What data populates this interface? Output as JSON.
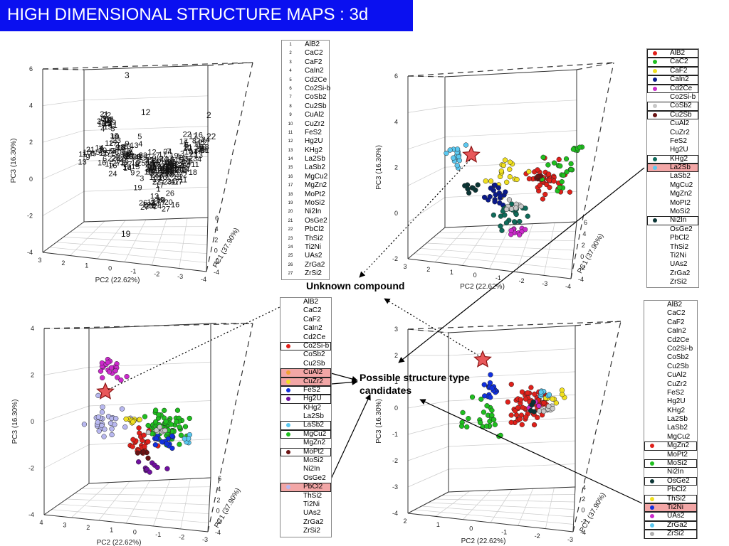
{
  "header": {
    "title": "HIGH DIMENSIONAL STRUCTURE MAPS : 3d"
  },
  "annotations": {
    "unknown_compound": "Unknown compound",
    "candidates": "Possible structure type candidates"
  },
  "colors": {
    "title_bg": "#0a10f0",
    "red": "#e0201a",
    "green": "#1fbf1f",
    "yellow": "#f0e020",
    "navy": "#0a1a8c",
    "magenta": "#cc2acc",
    "lightgray": "#c8c8c8",
    "maroon": "#6b1414",
    "teal": "#0f6b5a",
    "lightblue": "#5bc8f0",
    "darkteal": "#0a3535",
    "lavender": "#b8b8f0",
    "orange": "#f0a030",
    "blue": "#1030e0",
    "purple": "#7010a0",
    "gray": "#b0b0b0",
    "pink_highlight": "#f2a6a6"
  },
  "legend_items": [
    "AlB2",
    "CaC2",
    "CaF2",
    "CaIn2",
    "Cd2Ce",
    "Co2Si-b",
    "CoSb2",
    "Cu2Sb",
    "CuAl2",
    "CuZr2",
    "FeS2",
    "Hg2U",
    "KHg2",
    "La2Sb",
    "LaSb2",
    "MgCu2",
    "MgZn2",
    "MoPt2",
    "MoSi2",
    "Ni2In",
    "OsGe2",
    "PbCl2",
    "ThSi2",
    "Ti2Ni",
    "UAs2",
    "ZrGa2",
    "ZrSi2"
  ],
  "legend_numbers": [
    "1",
    "2",
    "3",
    "4",
    "5",
    "6",
    "7",
    "8",
    "9",
    "10",
    "11",
    "12",
    "13",
    "14",
    "15",
    "16",
    "17",
    "18",
    "19",
    "20",
    "21",
    "22",
    "23",
    "24",
    "25",
    "26",
    "27"
  ],
  "legend_tl": {
    "highlight": {}
  },
  "legend_tr": {
    "highlight": {
      "AlB2": "red",
      "CaC2": "green",
      "CaF2": "yellow",
      "CaIn2": "navy",
      "Cd2Ce": "magenta",
      "CoSb2": "lightgray",
      "Cu2Sb": "maroon",
      "KHg2": "teal",
      "La2Sb": "lightblue",
      "Ni2In": "darkteal"
    },
    "pink": [
      "La2Sb"
    ]
  },
  "legend_bl": {
    "highlight": {
      "Co2Si-b": "red",
      "CuAl2": "orange",
      "CuZr2": "yellow",
      "FeS2": "blue",
      "Hg2U": "purple",
      "LaSb2": "lightblue",
      "MgCu2": "green",
      "MoPt2": "maroon",
      "PbCl2": "lavender"
    },
    "pink": [
      "CuAl2",
      "CuZr2",
      "PbCl2"
    ]
  },
  "legend_br": {
    "highlight": {
      "MgZn2": "red",
      "MoSi2": "green",
      "OsGe2": "darkteal",
      "ThSi2": "yellow",
      "Ti2Ni": "blue",
      "UAs2": "magenta",
      "ZrGa2": "lightblue",
      "ZrSi2": "gray"
    },
    "pink": [
      "Ti2Ni"
    ]
  },
  "axes": {
    "pc3": "PC3 (16.30%)",
    "pc2": "PC2 (22.62%)",
    "pc1": "PC1 (37.90%)",
    "tl_z": [
      "6",
      "4",
      "2",
      "0",
      "-2",
      "-4"
    ],
    "tl_x": [
      "3",
      "2",
      "1",
      "0",
      "-1",
      "-2",
      "-3",
      "-4"
    ],
    "tl_y": [
      "6",
      "4",
      "2",
      "0",
      "-2",
      "-4"
    ],
    "tr_z": [
      "6",
      "4",
      "2",
      "0",
      "-2"
    ],
    "tr_x": [
      "3",
      "2",
      "1",
      "0",
      "-1",
      "-2",
      "-3",
      "-4"
    ],
    "tr_y": [
      "6",
      "4",
      "2",
      "0",
      "-2",
      "-4"
    ],
    "bl_z": [
      "4",
      "2",
      "0",
      "-2",
      "-4"
    ],
    "bl_x": [
      "4",
      "3",
      "2",
      "1",
      "0",
      "-1",
      "-2",
      "-3"
    ],
    "bl_y": [
      "6",
      "4",
      "2",
      "0",
      "-2",
      "-4"
    ],
    "br_z": [
      "3",
      "2",
      "1",
      "0",
      "-1",
      "-2",
      "-3",
      "-4"
    ],
    "br_x": [
      "2",
      "1",
      "0",
      "-1",
      "-2",
      "-3"
    ],
    "br_y": [
      "4",
      "2",
      "0",
      "-2",
      "-4"
    ]
  },
  "chart_data": [
    {
      "type": "scatter",
      "panel": "top-left",
      "xlabel": "PC2 (22.62%)",
      "ylabel": "PC1 (37.90%)",
      "zlabel": "PC3 (16.30%)",
      "marker": "legend number",
      "xlim": [
        -4,
        3
      ],
      "ylim": [
        -4,
        6
      ],
      "zlim": [
        -4,
        6
      ],
      "note_points": "points plotted as structure-type numbers 1-27"
    },
    {
      "type": "scatter",
      "panel": "top-right",
      "xlabel": "PC2 (22.62%)",
      "ylabel": "PC1 (37.90%)",
      "zlabel": "PC3 (16.30%)",
      "series": [
        "AlB2",
        "CaC2",
        "CaF2",
        "CaIn2",
        "Cd2Ce",
        "CoSb2",
        "Cu2Sb",
        "KHg2",
        "La2Sb",
        "Ni2In"
      ],
      "xlim": [
        -4,
        3
      ],
      "ylim": [
        -4,
        6
      ],
      "zlim": [
        -3,
        6
      ]
    },
    {
      "type": "scatter",
      "panel": "bottom-left",
      "xlabel": "PC2 (22.62%)",
      "ylabel": "PC1 (37.90%)",
      "zlabel": "PC3 (16.30%)",
      "series": [
        "Co2Si-b",
        "CuAl2",
        "CuZr2",
        "FeS2",
        "Hg2U",
        "LaSb2",
        "MgCu2",
        "MoPt2",
        "PbCl2"
      ],
      "xlim": [
        -3,
        4
      ],
      "ylim": [
        -4,
        6
      ],
      "zlim": [
        -4,
        4
      ]
    },
    {
      "type": "scatter",
      "panel": "bottom-right",
      "xlabel": "PC2 (22.62%)",
      "ylabel": "PC1 (37.90%)",
      "zlabel": "PC3 (16.30%)",
      "series": [
        "MgZn2",
        "MoSi2",
        "OsGe2",
        "ThSi2",
        "Ti2Ni",
        "UAs2",
        "ZrGa2",
        "ZrSi2"
      ],
      "xlim": [
        -3,
        2
      ],
      "ylim": [
        -4,
        4
      ],
      "zlim": [
        -4,
        3
      ]
    }
  ]
}
